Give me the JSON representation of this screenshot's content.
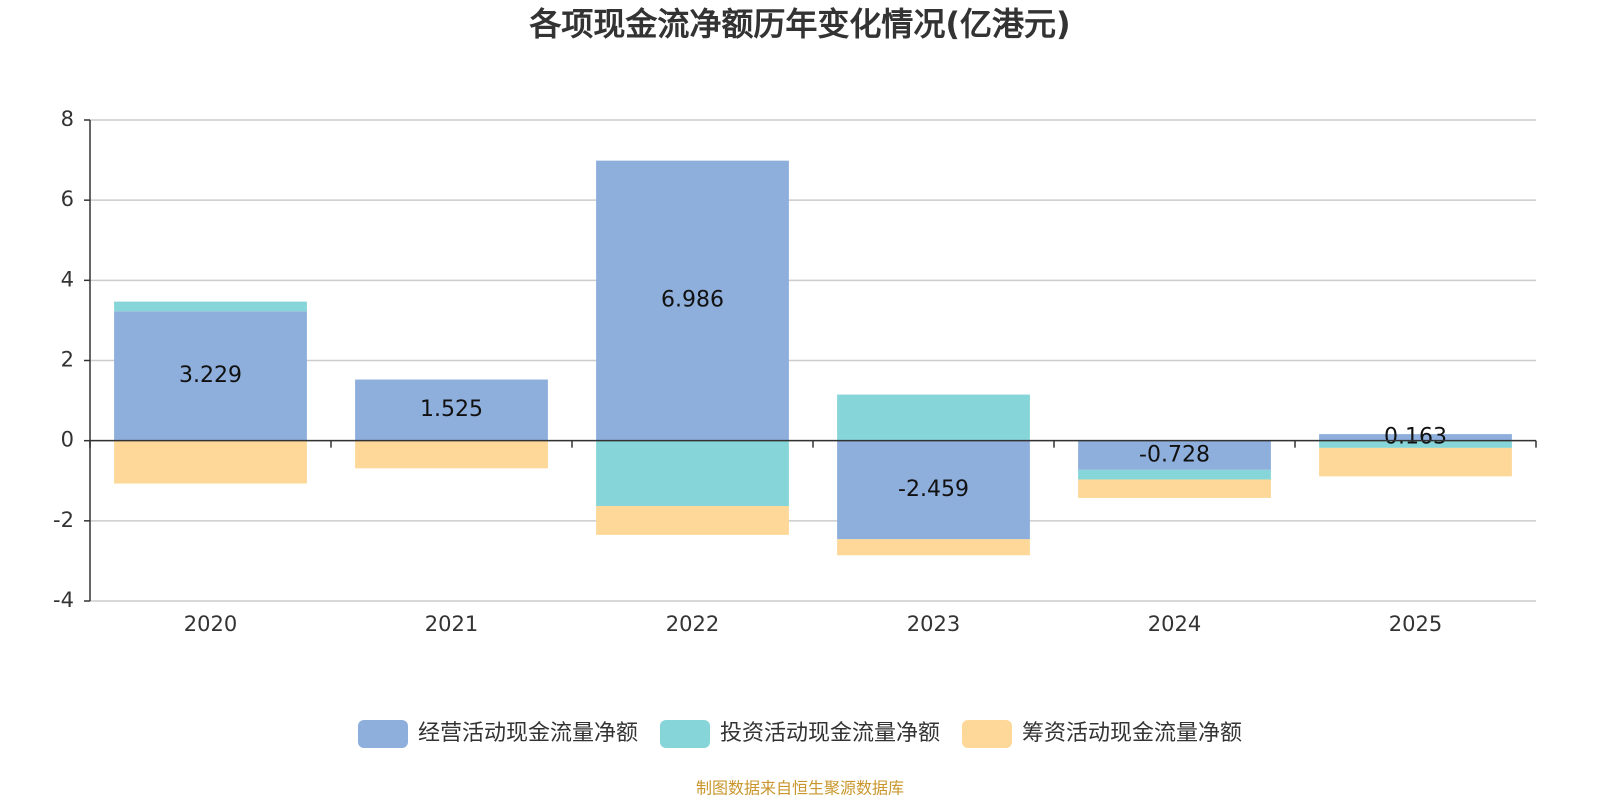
{
  "chart_data": {
    "type": "bar",
    "stacked": true,
    "title": "各项现金流净额历年变化情况(亿港元)",
    "source": "制图数据来自恒生聚源数据库",
    "categories": [
      "2020",
      "2021",
      "2022",
      "2023",
      "2024",
      "2025"
    ],
    "series": [
      {
        "name": "经营活动现金流量净额",
        "color": "#8eaedb",
        "show_labels": true,
        "values": [
          3.229,
          1.525,
          6.986,
          -2.459,
          -0.728,
          0.163
        ]
      },
      {
        "name": "投资活动现金流量净额",
        "color": "#86d5d8",
        "show_labels": false,
        "values": [
          0.24,
          0,
          -1.63,
          1.15,
          -0.24,
          -0.18
        ]
      },
      {
        "name": "筹资活动现金流量净额",
        "color": "#fdd899",
        "show_labels": false,
        "values": [
          -1.07,
          -0.69,
          -0.72,
          -0.4,
          -0.46,
          -0.71
        ]
      }
    ],
    "ylim": [
      -4,
      8
    ],
    "yticks": [
      -4,
      -2,
      0,
      2,
      4,
      6,
      8
    ],
    "grid": true
  }
}
